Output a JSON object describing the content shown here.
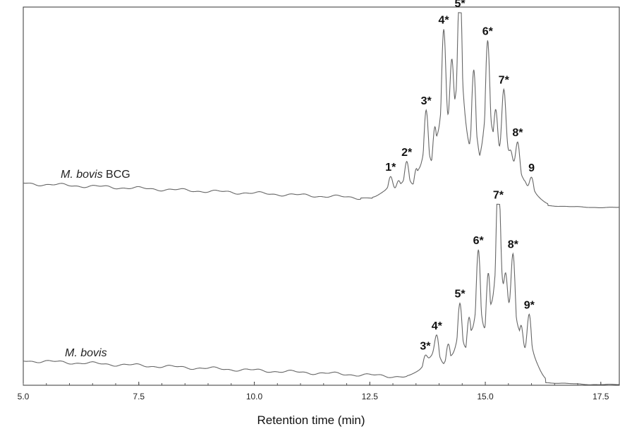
{
  "chart_data": {
    "type": "line",
    "title": "",
    "xlabel": "Retention time (min)",
    "ylabel": "",
    "xlim": [
      5.0,
      17.9
    ],
    "xticks": [
      "5.0",
      "7.5",
      "10.0",
      "12.5",
      "15.0",
      "17.5"
    ],
    "grid": false,
    "series": [
      {
        "name_italic": "M. bovis",
        "name_rest": " BCG",
        "peaks": [
          {
            "label": "1*",
            "x": 12.95,
            "y": 0.1
          },
          {
            "label": "2*",
            "x": 13.3,
            "y": 0.17
          },
          {
            "label": "3*",
            "x": 13.72,
            "y": 0.4
          },
          {
            "label": "4*",
            "x": 14.1,
            "y": 0.76
          },
          {
            "label": "5*",
            "x": 14.45,
            "y": 1.0
          },
          {
            "label": "6*",
            "x": 15.05,
            "y": 0.72
          },
          {
            "label": "7*",
            "x": 15.4,
            "y": 0.5
          },
          {
            "label": "8*",
            "x": 15.7,
            "y": 0.27
          },
          {
            "label": "9",
            "x": 16.0,
            "y": 0.12
          }
        ]
      },
      {
        "name_italic": "M. bovis",
        "name_rest": "",
        "peaks": [
          {
            "label": "3*",
            "x": 13.7,
            "y": 0.1
          },
          {
            "label": "4*",
            "x": 13.95,
            "y": 0.2
          },
          {
            "label": "5*",
            "x": 14.45,
            "y": 0.36
          },
          {
            "label": "6*",
            "x": 14.85,
            "y": 0.62
          },
          {
            "label": "7*",
            "x": 15.28,
            "y": 1.0
          },
          {
            "label": "8*",
            "x": 15.6,
            "y": 0.6
          },
          {
            "label": "9*",
            "x": 15.95,
            "y": 0.32
          }
        ]
      }
    ]
  }
}
